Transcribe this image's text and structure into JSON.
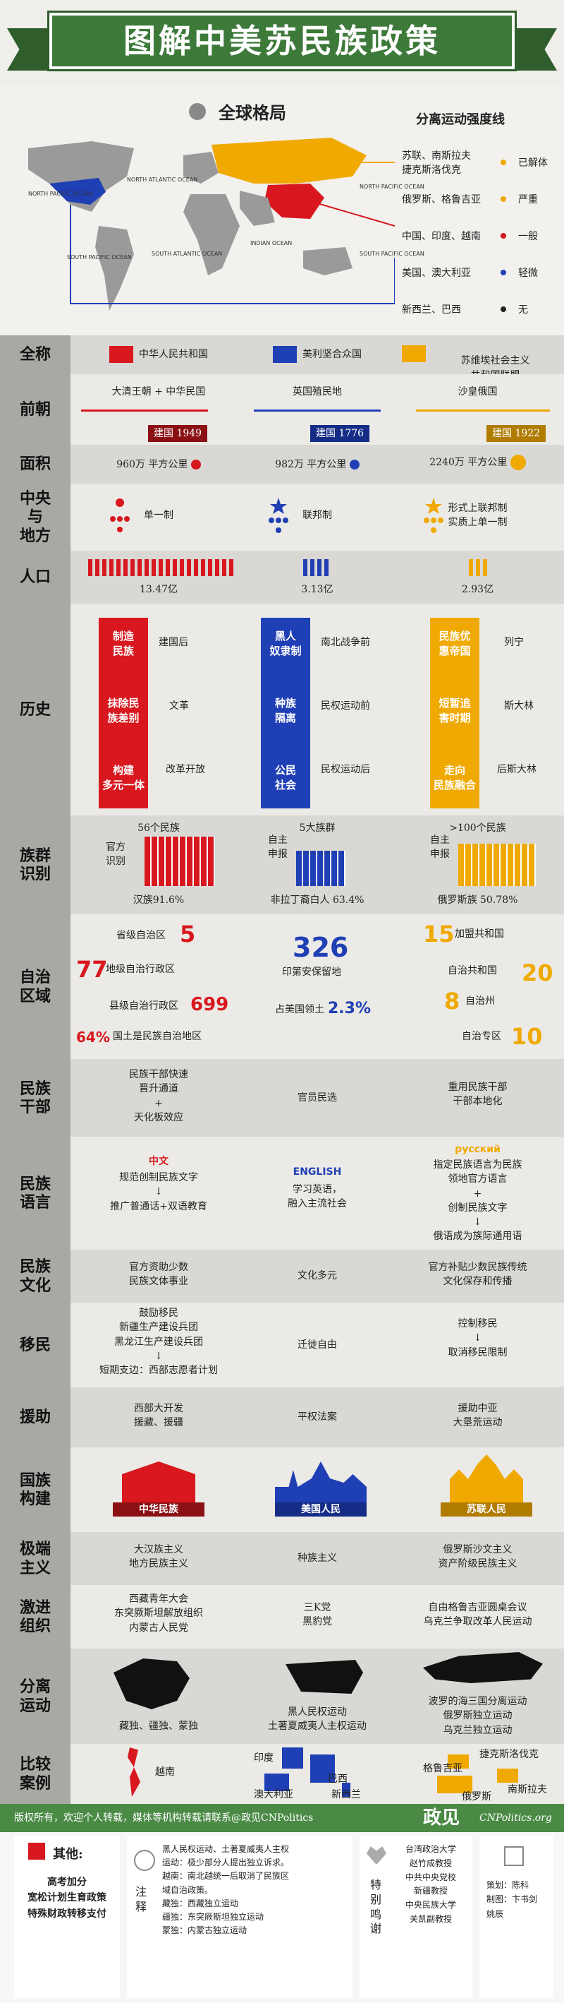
{
  "header": {
    "title": "图解中美苏民族政策"
  },
  "map": {
    "title": "全球格局",
    "legend_title": "分离运动强度线",
    "oceans": [
      "NORTH\nPACIFIC\nOCEAN",
      "NORTH\nATLANTIC\nOCEAN",
      "SOUTH\nPACIFIC\nOCEAN",
      "SOUTH\nATLANTIC\nOCEAN",
      "INDIAN\nOCEAN",
      "NORTH\nPACIFIC\nOCEAN",
      "SOUTH\nPACIFIC\nOCEAN"
    ],
    "legend": [
      {
        "countries": "苏联、南斯拉夫\n捷克斯洛伐克",
        "level": "已解体",
        "color": "#f0a900"
      },
      {
        "countries": "俄罗斯、格鲁吉亚",
        "level": "严重",
        "color": "#f0a900"
      },
      {
        "countries": "中国、印度、越南",
        "level": "一般",
        "color": "#d8171e"
      },
      {
        "countries": "美国、澳大利亚",
        "level": "轻微",
        "color": "#1f3fb5"
      },
      {
        "countries": "新西兰、巴西",
        "level": "无",
        "color": "#222"
      }
    ]
  },
  "rows": {
    "fullname": {
      "label": "全称",
      "c1": "中华人民共和国",
      "c2": "美利坚合众国",
      "c3": "苏维埃社会主义\n共和国联盟"
    },
    "previous": {
      "label": "前朝",
      "c1": "大清王朝 + 中华民国",
      "c1b": "建国 1949",
      "c2": "英国殖民地",
      "c2b": "建国 1776",
      "c3": "沙皇俄国",
      "c3b": "建国 1922"
    },
    "area": {
      "label": "面积",
      "c1": "960万 平方公里",
      "c2": "982万 平方公里",
      "c3": "2240万 平方公里"
    },
    "central": {
      "label": "中央\n与\n地方",
      "c1": "单一制",
      "c2": "联邦制",
      "c3": "形式上联邦制\n实质上单一制"
    },
    "population": {
      "label": "人口",
      "c1": "13.47亿",
      "c2": "3.13亿",
      "c3": "2.93亿"
    },
    "history": {
      "label": "历史",
      "c1": {
        "box1": "制造\n民族",
        "box2": "抹除民\n族差别",
        "box3": "构建\n多元一体",
        "t1": "建国后",
        "t2": "文革",
        "t3": "改革开放"
      },
      "c2": {
        "box1": "黑人\n奴隶制",
        "box2": "种族\n隔离",
        "box3": "公民\n社会",
        "t1": "南北战争前",
        "t2": "民权运动前",
        "t3": "民权运动后"
      },
      "c3": {
        "box1": "民族优\n惠帝国",
        "box2": "短暂追\n害时期",
        "box3": "走向\n民族融合",
        "t1": "列宁",
        "t2": "斯大林",
        "t3": "后斯大林"
      }
    },
    "ethnic": {
      "label": "族群\n识别",
      "c1": {
        "top": "56个民族",
        "side": "官方\n识别",
        "bottom": "汉族91.6%"
      },
      "c2": {
        "top": "5大族群",
        "side": "自主\n申报",
        "bottom": "非拉丁裔白人 63.4%"
      },
      "c3": {
        "top": ">100个民族",
        "side": "自主\n申报",
        "bottom": "俄罗斯族 50.78%"
      }
    },
    "autonomy": {
      "label": "自治\n区域",
      "c1": [
        {
          "text": "省级自治区",
          "num": "5"
        },
        {
          "text": "地级自治行政区",
          "num": "77"
        },
        {
          "text": "县级自治行政区",
          "num": "699"
        },
        {
          "text": "国土是民族自治地区",
          "num": "64%"
        }
      ],
      "c2": {
        "num": "326",
        "text": "印第安保留地",
        "text2": "占美国领土",
        "num2": "2.3%"
      },
      "c3": [
        {
          "text": "加盟共和国",
          "num": "15"
        },
        {
          "text": "自治共和国",
          "num": "20"
        },
        {
          "text": "自治州",
          "num": "8"
        },
        {
          "text": "自治专区",
          "num": "10"
        }
      ]
    },
    "cadres": {
      "label": "民族\n干部",
      "c1": "民族干部快速\n晋升通道\n+\n天化板效应",
      "c2": "官员民选",
      "c3": "重用民族干部\n干部本地化"
    },
    "language": {
      "label": "民族\n语言",
      "c1_tag": "中文",
      "c1": "规范创制民族文字\n↓\n推广普通话+双语教育",
      "c2_tag": "ENGLISH",
      "c2": "学习英语，\n融入主流社会",
      "c3_tag": "русский",
      "c3": "指定民族语言为民族\n领地官方语言\n+\n创制民族文字\n↓\n俄语成为族际通用语"
    },
    "culture": {
      "label": "民族\n文化",
      "c1": "官方资助少数\n民族文体事业",
      "c2": "文化多元",
      "c3": "官方补贴少数民族传统\n文化保存和传播"
    },
    "migration": {
      "label": "移民",
      "c1": "鼓励移民\n新疆生产建设兵团\n黑龙江生产建设兵团\n↓\n短期支边：西部志愿者计划",
      "c2": "迁徙自由",
      "c3": "控制移民\n↓\n取消移民限制"
    },
    "aid": {
      "label": "援助",
      "c1": "西部大开发\n援藏、援疆",
      "c2": "平权法案",
      "c3": "援助中亚\n大垦荒运动"
    },
    "nation": {
      "label": "国族\n构建",
      "c1": "中华民族",
      "c2": "美国人民",
      "c3": "苏联人民"
    },
    "extreme": {
      "label": "极端\n主义",
      "c1": "大汉族主义\n地方民族主义",
      "c2": "种族主义",
      "c3": "俄罗斯沙文主义\n资产阶级民族主义"
    },
    "radical": {
      "label": "激进\n组织",
      "c1": "西藏青年大会\n东突厥斯坦解放组织\n内蒙古人民党",
      "c2": "三K党\n黑豹党",
      "c3": "自由格鲁吉亚圆桌会议\n乌克兰争取改革人民运动"
    },
    "separation": {
      "label": "分离\n运动",
      "c1": "藏独、疆独、蒙独",
      "c2": "黑人民权运动\n土著夏威夷人主权运动",
      "c3": "波罗的海三国分离运动\n俄罗斯独立运动\n乌克兰独立运动"
    },
    "compare": {
      "label": "比较\n案例",
      "c1": "越南",
      "c2a": "印度",
      "c2b": "巴西",
      "c2c": "澳大利亚",
      "c2d": "新西兰",
      "c3a": "捷克斯洛伐克",
      "c3b": "格鲁吉亚",
      "c3c": "南斯拉夫",
      "c3d": "俄罗斯"
    }
  },
  "footer": {
    "band": "版权所有，欢迎个人转载，媒体等机构转载请联系@政见CNPolitics",
    "brand": "政见",
    "site": "CNPolitics.org",
    "other_title": "其他:",
    "other_text": "高考加分\n宽松计划生育政策\n特殊财政转移支付",
    "notes_label": "注\n释",
    "notes": "黑人民权运动、土著夏威夷人主权\n运动：极少部分人提出独立诉求。\n越南：南北越统一后取消了民族区\n域自治政策。\n藏独：西藏独立运动\n疆独：东突厥斯坦独立运动\n蒙独：内蒙古独立运动",
    "thanks_label": "特\n别\n鸣\n谢",
    "thanks": "台湾政治大学\n赵竹成教授\n中共中央党校\n新疆教授\n中央民族大学\n关凯副教授",
    "credit": "策划：陈科\n制图：卞书剑\n姚辰"
  }
}
